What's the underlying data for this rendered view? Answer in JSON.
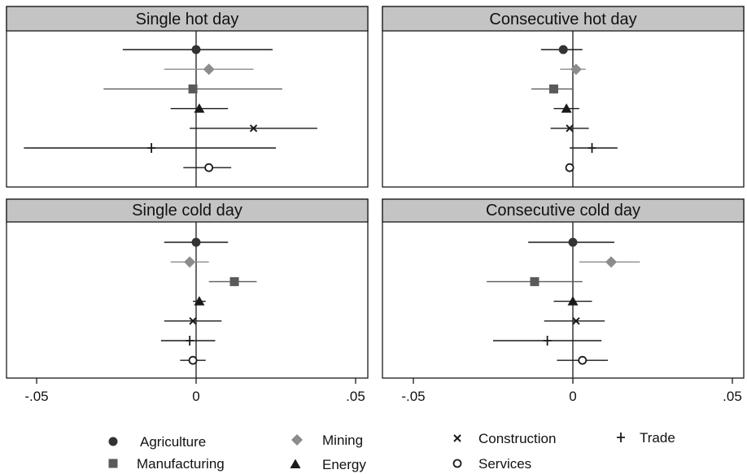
{
  "chart_data": {
    "type": "scatter",
    "layout": "2x2 facets",
    "x_ticks": [
      -0.05,
      0,
      0.05
    ],
    "x_tick_labels": [
      "-.05",
      "0",
      ".05"
    ],
    "xlim": [
      -0.055,
      0.052
    ],
    "reference_line_x": 0,
    "grid": false,
    "legend_position": "bottom",
    "series": [
      {
        "name": "Agriculture",
        "marker": "filled circle",
        "color": "#333333"
      },
      {
        "name": "Mining",
        "marker": "filled diamond",
        "color": "#8c8c8c"
      },
      {
        "name": "Manufacturing",
        "marker": "filled square",
        "color": "#5a5a5a"
      },
      {
        "name": "Energy",
        "marker": "filled triangle",
        "color": "#1a1a1a"
      },
      {
        "name": "Construction",
        "marker": "x",
        "color": "#1a1a1a"
      },
      {
        "name": "Trade",
        "marker": "plus",
        "color": "#1a1a1a"
      },
      {
        "name": "Services",
        "marker": "hollow circle",
        "color": "#1a1a1a"
      }
    ],
    "panels": [
      {
        "title": "Single hot day",
        "estimates": [
          {
            "series": "Agriculture",
            "value": 0.0,
            "ci": [
              -0.023,
              0.024
            ]
          },
          {
            "series": "Mining",
            "value": 0.004,
            "ci": [
              -0.01,
              0.018
            ]
          },
          {
            "series": "Manufacturing",
            "value": -0.001,
            "ci": [
              -0.029,
              0.027
            ]
          },
          {
            "series": "Energy",
            "value": 0.001,
            "ci": [
              -0.008,
              0.01
            ]
          },
          {
            "series": "Construction",
            "value": 0.018,
            "ci": [
              -0.002,
              0.038
            ]
          },
          {
            "series": "Trade",
            "value": -0.014,
            "ci": [
              -0.054,
              0.025
            ]
          },
          {
            "series": "Services",
            "value": 0.004,
            "ci": [
              -0.004,
              0.011
            ]
          }
        ]
      },
      {
        "title": "Consecutive hot day",
        "estimates": [
          {
            "series": "Agriculture",
            "value": -0.003,
            "ci": [
              -0.01,
              0.003
            ]
          },
          {
            "series": "Mining",
            "value": 0.001,
            "ci": [
              -0.004,
              0.004
            ]
          },
          {
            "series": "Manufacturing",
            "value": -0.006,
            "ci": [
              -0.013,
              0.0
            ]
          },
          {
            "series": "Energy",
            "value": -0.002,
            "ci": [
              -0.006,
              0.002
            ]
          },
          {
            "series": "Construction",
            "value": -0.001,
            "ci": [
              -0.007,
              0.005
            ]
          },
          {
            "series": "Trade",
            "value": 0.006,
            "ci": [
              -0.001,
              0.014
            ]
          },
          {
            "series": "Services",
            "value": -0.001,
            "ci": [
              -0.002,
              0.0
            ]
          }
        ]
      },
      {
        "title": "Single cold day",
        "estimates": [
          {
            "series": "Agriculture",
            "value": 0.0,
            "ci": [
              -0.01,
              0.01
            ]
          },
          {
            "series": "Mining",
            "value": -0.002,
            "ci": [
              -0.008,
              0.004
            ]
          },
          {
            "series": "Manufacturing",
            "value": 0.012,
            "ci": [
              0.004,
              0.019
            ]
          },
          {
            "series": "Energy",
            "value": 0.001,
            "ci": [
              -0.001,
              0.003
            ]
          },
          {
            "series": "Construction",
            "value": -0.001,
            "ci": [
              -0.01,
              0.008
            ]
          },
          {
            "series": "Trade",
            "value": -0.002,
            "ci": [
              -0.011,
              0.006
            ]
          },
          {
            "series": "Services",
            "value": -0.001,
            "ci": [
              -0.005,
              0.003
            ]
          }
        ]
      },
      {
        "title": "Consecutive cold day",
        "estimates": [
          {
            "series": "Agriculture",
            "value": 0.0,
            "ci": [
              -0.014,
              0.013
            ]
          },
          {
            "series": "Mining",
            "value": 0.012,
            "ci": [
              0.002,
              0.021
            ]
          },
          {
            "series": "Manufacturing",
            "value": -0.012,
            "ci": [
              -0.027,
              0.003
            ]
          },
          {
            "series": "Energy",
            "value": 0.0,
            "ci": [
              -0.006,
              0.006
            ]
          },
          {
            "series": "Construction",
            "value": 0.001,
            "ci": [
              -0.009,
              0.01
            ]
          },
          {
            "series": "Trade",
            "value": -0.008,
            "ci": [
              -0.025,
              0.009
            ]
          },
          {
            "series": "Services",
            "value": 0.003,
            "ci": [
              -0.005,
              0.011
            ]
          }
        ]
      }
    ]
  }
}
